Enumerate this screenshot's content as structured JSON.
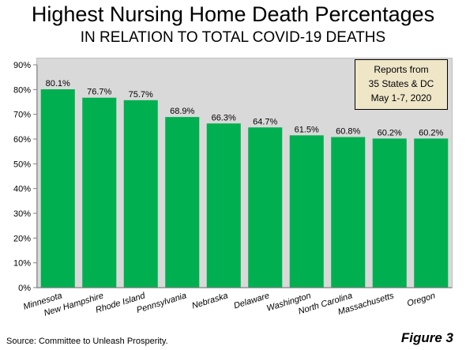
{
  "title": "Highest Nursing Home Death Percentages",
  "subtitle": "IN RELATION TO TOTAL COVID-19 DEATHS",
  "note": {
    "line1": "Reports from",
    "line2": "35 States & DC",
    "line3": "May 1-7, 2020"
  },
  "source": "Source: Committee to Unleash Prosperity.",
  "figure_label": "Figure 3",
  "colors": {
    "bar": "#00b050",
    "plot_bg": "#d9d9d9",
    "note_bg": "#efe6c8"
  },
  "chart_data": {
    "type": "bar",
    "title": "Highest Nursing Home Death Percentages",
    "subtitle": "IN RELATION TO TOTAL COVID-19 DEATHS",
    "xlabel": "",
    "ylabel": "",
    "ylim": [
      0,
      90
    ],
    "yticks": [
      "0%",
      "10%",
      "20%",
      "30%",
      "40%",
      "50%",
      "60%",
      "70%",
      "80%",
      "90%"
    ],
    "grid": false,
    "legend": "none",
    "categories": [
      "Minnesota",
      "New Hampshire",
      "Rhode Island",
      "Pennsylvania",
      "Nebraska",
      "Delaware",
      "Washington",
      "North Carolina",
      "Massachusetts",
      "Oregon"
    ],
    "values": [
      80.1,
      76.7,
      75.7,
      68.9,
      66.3,
      64.7,
      61.5,
      60.8,
      60.2,
      60.2
    ],
    "data_labels": [
      "80.1%",
      "76.7%",
      "75.7%",
      "68.9%",
      "66.3%",
      "64.7%",
      "61.5%",
      "60.8%",
      "60.2%",
      "60.2%"
    ]
  }
}
